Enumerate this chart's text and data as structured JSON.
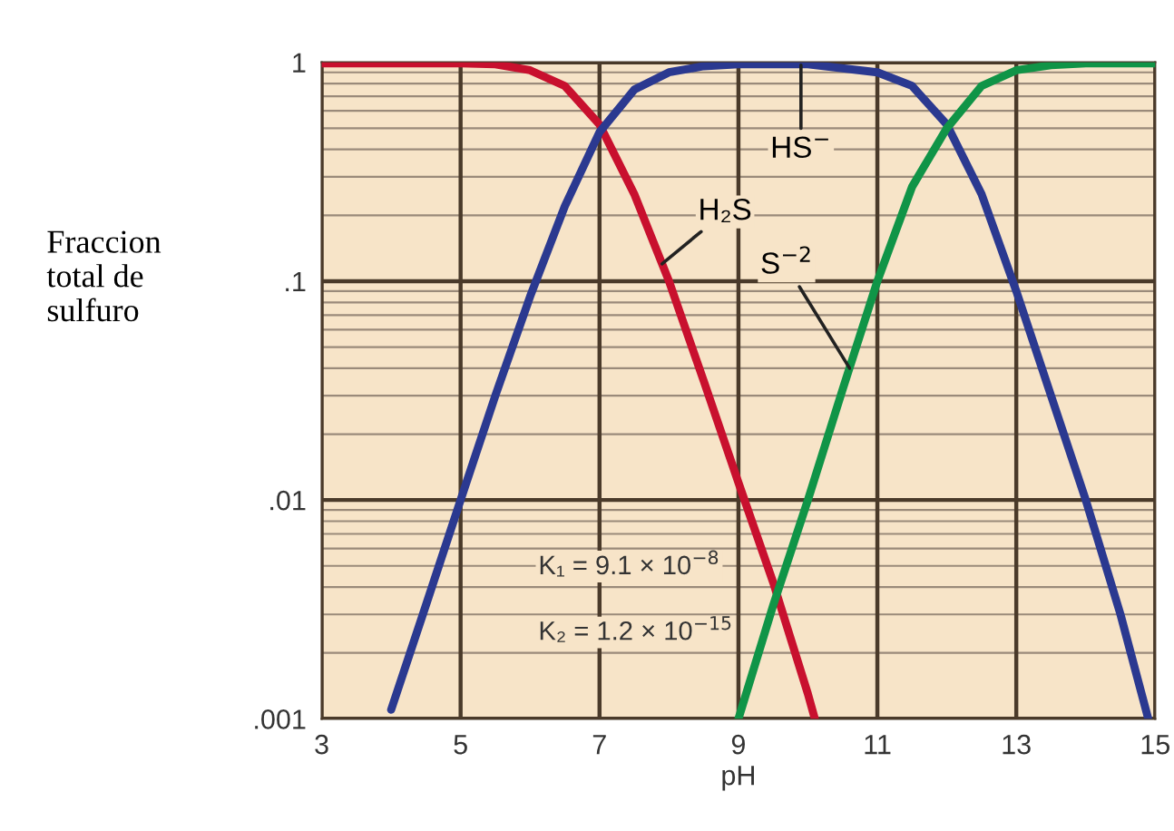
{
  "chart_data": {
    "type": "line",
    "xlabel": "pH",
    "ylabel": "Fraccion\ntotal de\nsulfuro",
    "log": "y",
    "grid": true,
    "line_style": "solid",
    "marker": "none",
    "xlim": [
      3,
      15
    ],
    "xticks": [
      3,
      5,
      7,
      9,
      11,
      13,
      15
    ],
    "ylim": [
      0.001,
      1
    ],
    "yticks": [
      {
        "value": 0.001,
        "label": ".001"
      },
      {
        "value": 0.002,
        "label": null
      },
      {
        "value": 0.003,
        "label": null
      },
      {
        "value": 0.004,
        "label": null
      },
      {
        "value": 0.005,
        "label": null
      },
      {
        "value": 0.006,
        "label": null
      },
      {
        "value": 0.007,
        "label": null
      },
      {
        "value": 0.008,
        "label": null
      },
      {
        "value": 0.009,
        "label": null
      },
      {
        "value": 0.01,
        "label": ".01"
      },
      {
        "value": 0.02,
        "label": null
      },
      {
        "value": 0.03,
        "label": null
      },
      {
        "value": 0.04,
        "label": null
      },
      {
        "value": 0.05,
        "label": null
      },
      {
        "value": 0.06,
        "label": null
      },
      {
        "value": 0.07,
        "label": null
      },
      {
        "value": 0.08,
        "label": null
      },
      {
        "value": 0.09,
        "label": null
      },
      {
        "value": 0.1,
        "label": ".1"
      },
      {
        "value": 0.2,
        "label": null
      },
      {
        "value": 0.3,
        "label": null
      },
      {
        "value": 0.4,
        "label": null
      },
      {
        "value": 0.5,
        "label": null
      },
      {
        "value": 0.6,
        "label": null
      },
      {
        "value": 0.7,
        "label": null
      },
      {
        "value": 0.8,
        "label": null
      },
      {
        "value": 0.9,
        "label": null
      },
      1
    ],
    "series": [
      {
        "color": "#c8102e",
        "x": [
          3,
          4,
          5,
          5.5,
          6,
          6.5,
          7,
          7.5,
          8,
          8.5,
          9,
          9.5,
          10,
          10.1
        ],
        "values": [
          0.99,
          0.99,
          0.99,
          0.98,
          0.92,
          0.78,
          0.52,
          0.25,
          0.1,
          0.035,
          0.012,
          0.0042,
          0.0013,
          0.001
        ]
      },
      {
        "color": "#2b3990",
        "x": [
          4,
          4.5,
          5,
          5.5,
          6,
          6.5,
          7,
          7.5,
          8,
          8.5,
          9,
          10,
          11,
          11.5,
          12,
          12.5,
          13,
          13.5,
          14,
          14.5,
          14.9
        ],
        "values": [
          0.0011,
          0.0033,
          0.01,
          0.03,
          0.085,
          0.22,
          0.48,
          0.75,
          0.9,
          0.96,
          0.98,
          0.98,
          0.9,
          0.78,
          0.52,
          0.25,
          0.09,
          0.03,
          0.01,
          0.003,
          0.001
        ]
      },
      {
        "color": "#109447",
        "x": [
          9,
          9.5,
          10,
          10.5,
          11,
          11.5,
          12,
          12.5,
          13,
          13.5,
          14,
          15
        ],
        "values": [
          0.001,
          0.0033,
          0.01,
          0.032,
          0.1,
          0.27,
          0.5,
          0.78,
          0.92,
          0.97,
          0.99,
          0.99
        ]
      }
    ],
    "annotations": [
      {
        "text": "HS$^{−}$",
        "x": 9.9,
        "y": 0.97
      },
      {
        "text": "H₂S",
        "x": 7.9,
        "y": 0.12
      },
      {
        "text": "S$^{−2}$",
        "x": 10.6,
        "y": 0.04
      },
      "K₁ = 9.1 × 10$^{−8}$",
      "K₂ = 1.2 × 10$^{−15}$"
    ]
  }
}
